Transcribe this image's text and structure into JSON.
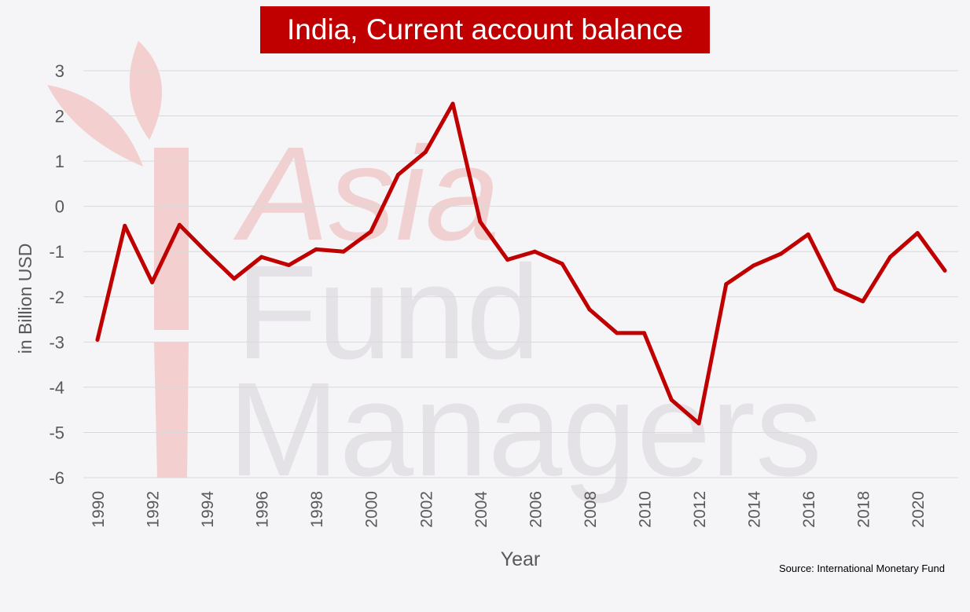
{
  "watermark": {
    "lines": [
      "Asia",
      "Fund",
      "Managers"
    ]
  },
  "source": "Source: International Monetary Fund",
  "colors": {
    "series": "#c00000",
    "title_background": "#c00000",
    "background": "#f5f4f7",
    "grid": "#d9d9d9",
    "text": "#595959"
  },
  "chart_data": {
    "type": "line",
    "title": "India, Current account balance",
    "xlabel": "Year",
    "ylabel": "in Billion USD",
    "ylim": [
      -6,
      3
    ],
    "yticks": [
      3,
      2,
      1,
      0,
      -1,
      -2,
      -3,
      -4,
      -5,
      -6
    ],
    "xticks": [
      1990,
      1992,
      1994,
      1996,
      1998,
      2000,
      2002,
      2004,
      2006,
      2008,
      2010,
      2012,
      2014,
      2016,
      2018,
      2020
    ],
    "grid": true,
    "legend": "none",
    "x": [
      1990,
      1991,
      1992,
      1993,
      1994,
      1995,
      1996,
      1997,
      1998,
      1999,
      2000,
      2001,
      2002,
      2003,
      2004,
      2005,
      2006,
      2007,
      2008,
      2009,
      2010,
      2011,
      2012,
      2013,
      2014,
      2015,
      2016,
      2017,
      2018,
      2019,
      2020,
      2021
    ],
    "series": [
      {
        "values": [
          -2.95,
          -0.43,
          -1.68,
          -0.41,
          -1.02,
          -1.6,
          -1.12,
          -1.3,
          -0.95,
          -1.0,
          -0.56,
          0.7,
          1.2,
          2.27,
          -0.34,
          -1.18,
          -1.0,
          -1.27,
          -2.28,
          -2.8,
          -2.8,
          -4.28,
          -4.8,
          -1.72,
          -1.31,
          -1.05,
          -0.62,
          -1.83,
          -2.1,
          -1.12,
          -0.59,
          -1.42
        ]
      }
    ]
  }
}
